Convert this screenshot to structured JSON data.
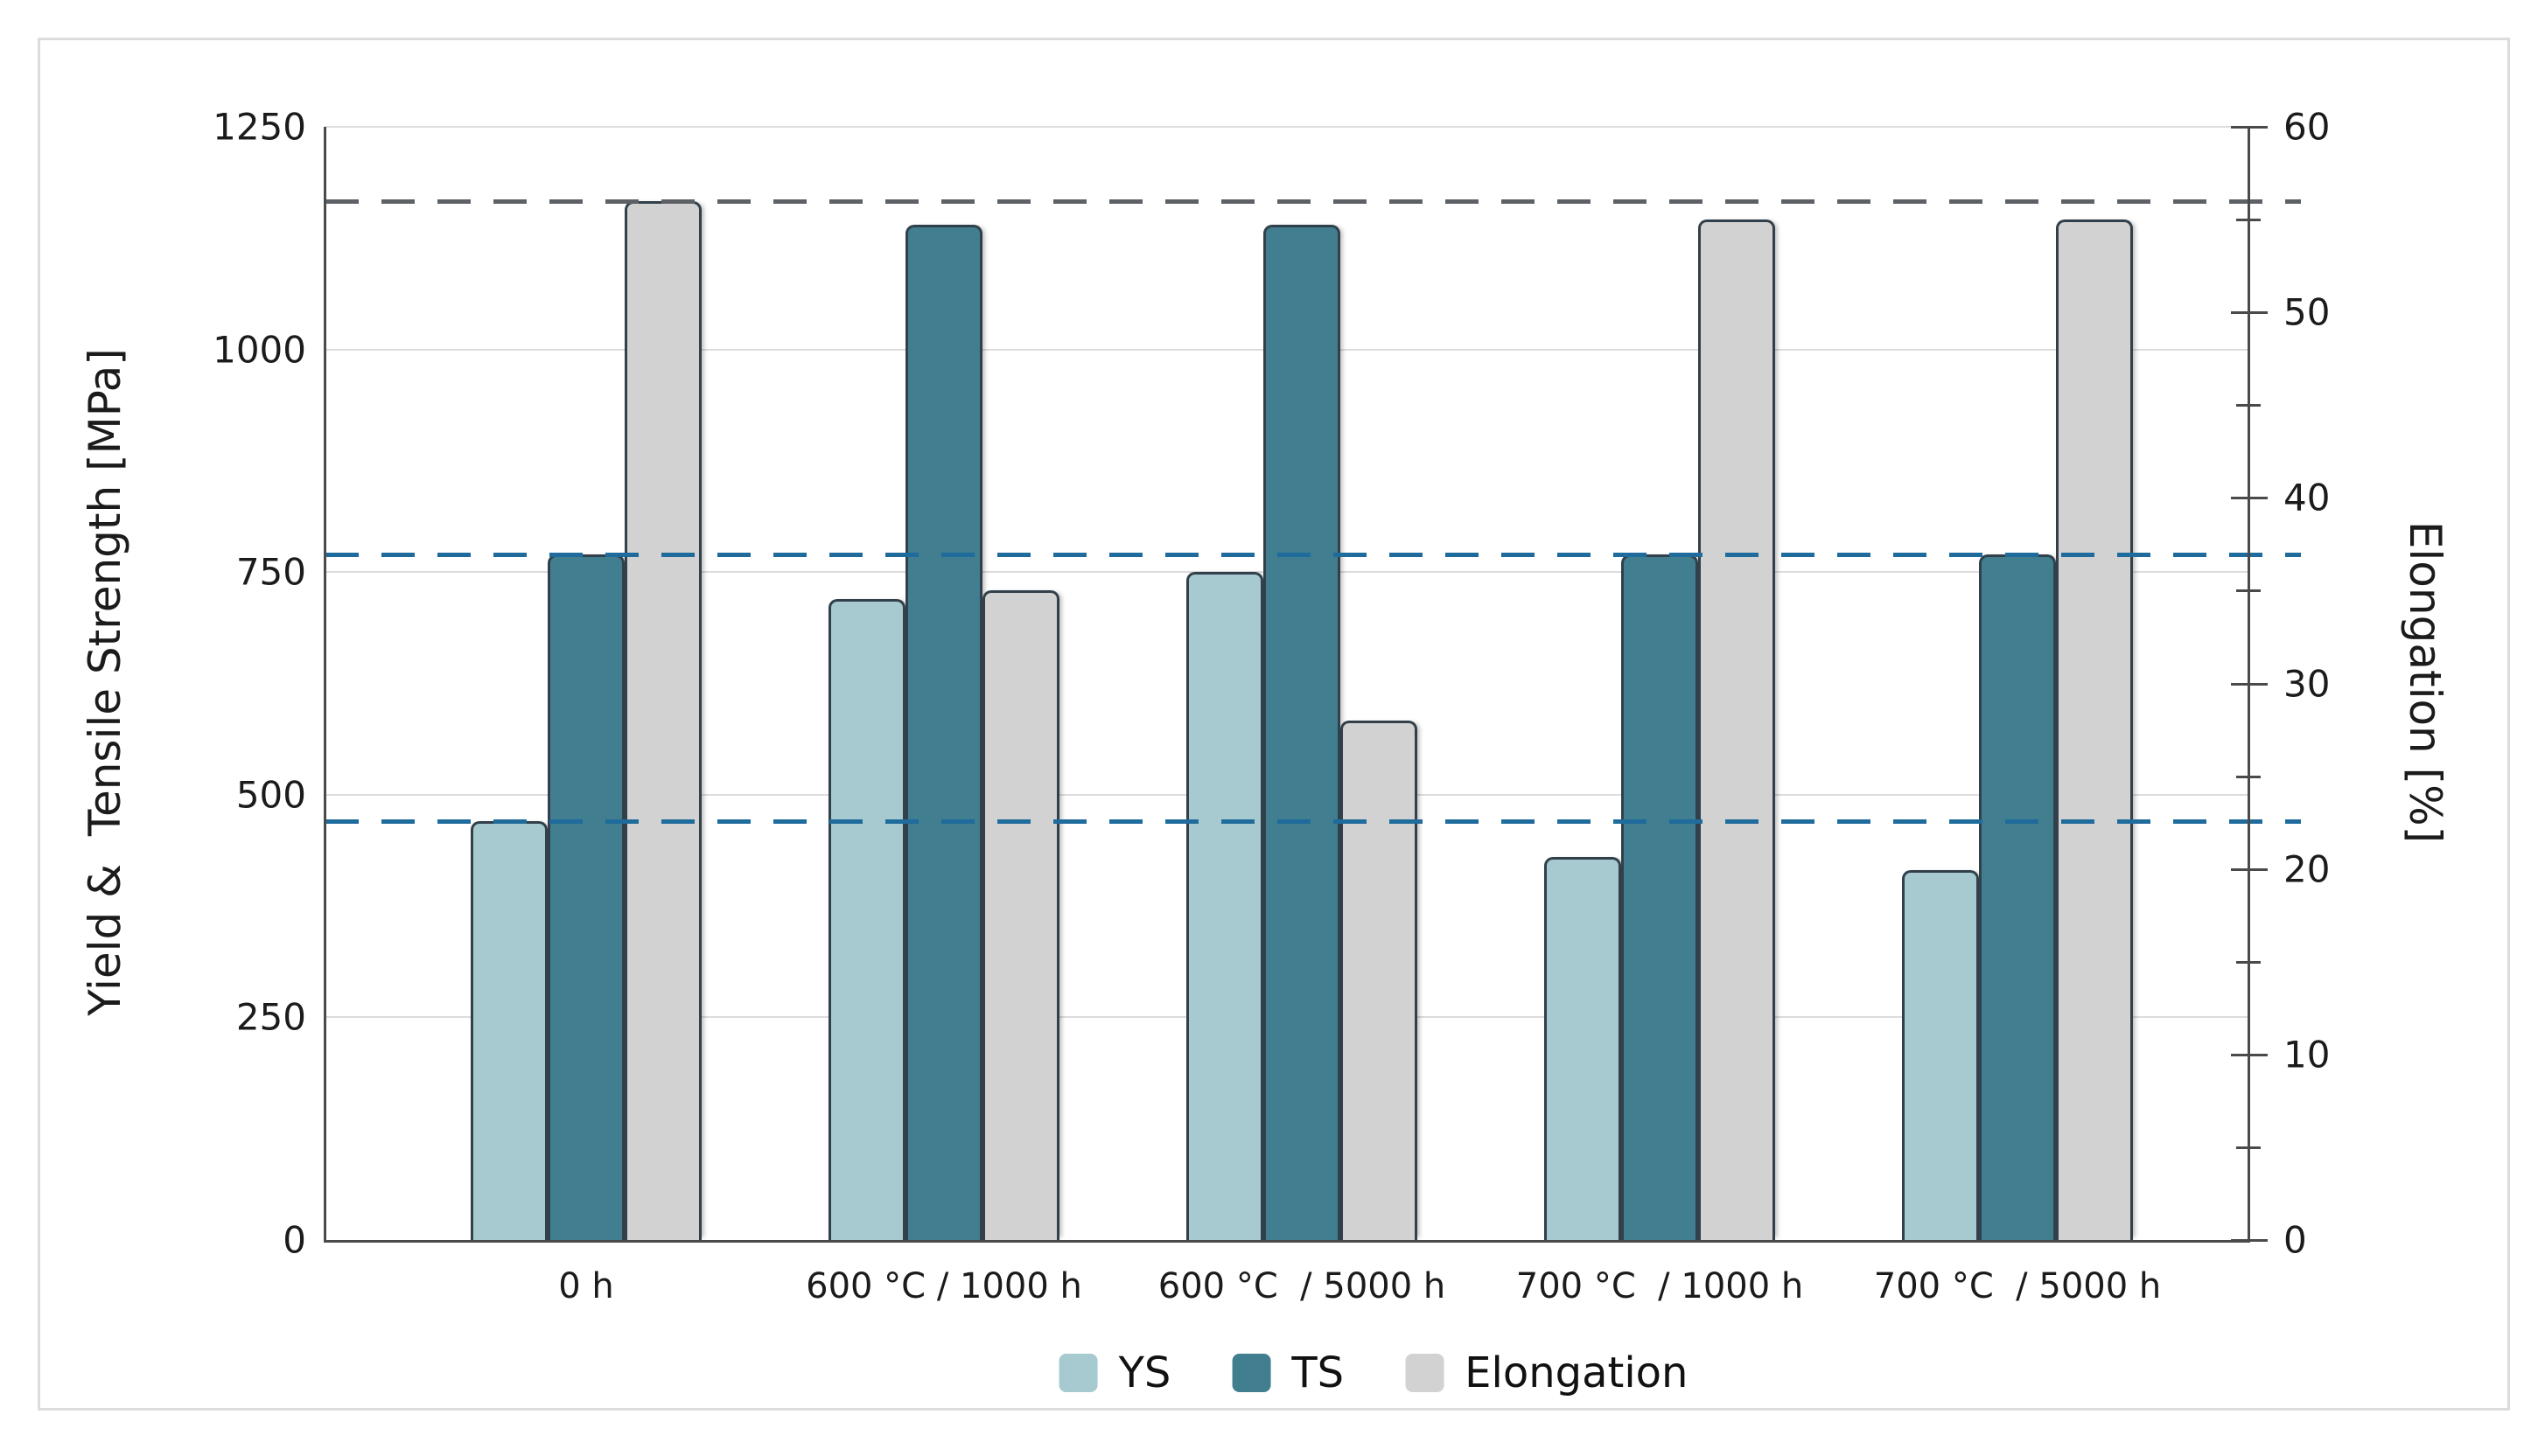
{
  "chart_data": {
    "type": "bar",
    "categories": [
      "0 h",
      "600 °C / 1000 h",
      "600 °C  / 5000 h",
      "700 °C  / 1000 h",
      "700 °C  / 5000 h"
    ],
    "series": [
      {
        "name": "YS",
        "axis": "left",
        "color": "#a7cad1",
        "values": [
          470,
          720,
          750,
          430,
          415
        ]
      },
      {
        "name": "TS",
        "axis": "left",
        "color": "#417f90",
        "values": [
          770,
          1140,
          1140,
          770,
          770
        ]
      },
      {
        "name": "Elongation",
        "axis": "right",
        "color": "#d2d2d2",
        "values": [
          56,
          35,
          28,
          55,
          55
        ]
      }
    ],
    "left_axis": {
      "label": "Yield &  Tensile Strength [MPa]",
      "range": [
        0,
        1250
      ],
      "ticks": [
        0,
        250,
        500,
        750,
        1000,
        1250
      ]
    },
    "right_axis": {
      "label": "Elongation [%]",
      "range": [
        0,
        60
      ],
      "ticks": [
        0,
        10,
        20,
        30,
        40,
        50,
        60
      ],
      "minor_ticks": [
        5,
        15,
        25,
        35,
        45,
        55
      ]
    },
    "reference_lines": [
      {
        "axis": "left",
        "value": 470,
        "color": "#1e6b9c",
        "style": "dashed"
      },
      {
        "axis": "left",
        "value": 770,
        "color": "#1e6b9c",
        "style": "dashed"
      },
      {
        "axis": "right",
        "value": 56,
        "color": "#5d6166",
        "style": "dashed"
      }
    ],
    "legend": [
      "YS",
      "TS",
      "Elongation"
    ],
    "grid": true,
    "legend_position": "bottom"
  },
  "colors": {
    "grid": "#dcdcdc",
    "axis": "#4a4a4a",
    "text": "#1b1b1b",
    "card_border": "#dcdcdc",
    "background": "#ffffff"
  }
}
